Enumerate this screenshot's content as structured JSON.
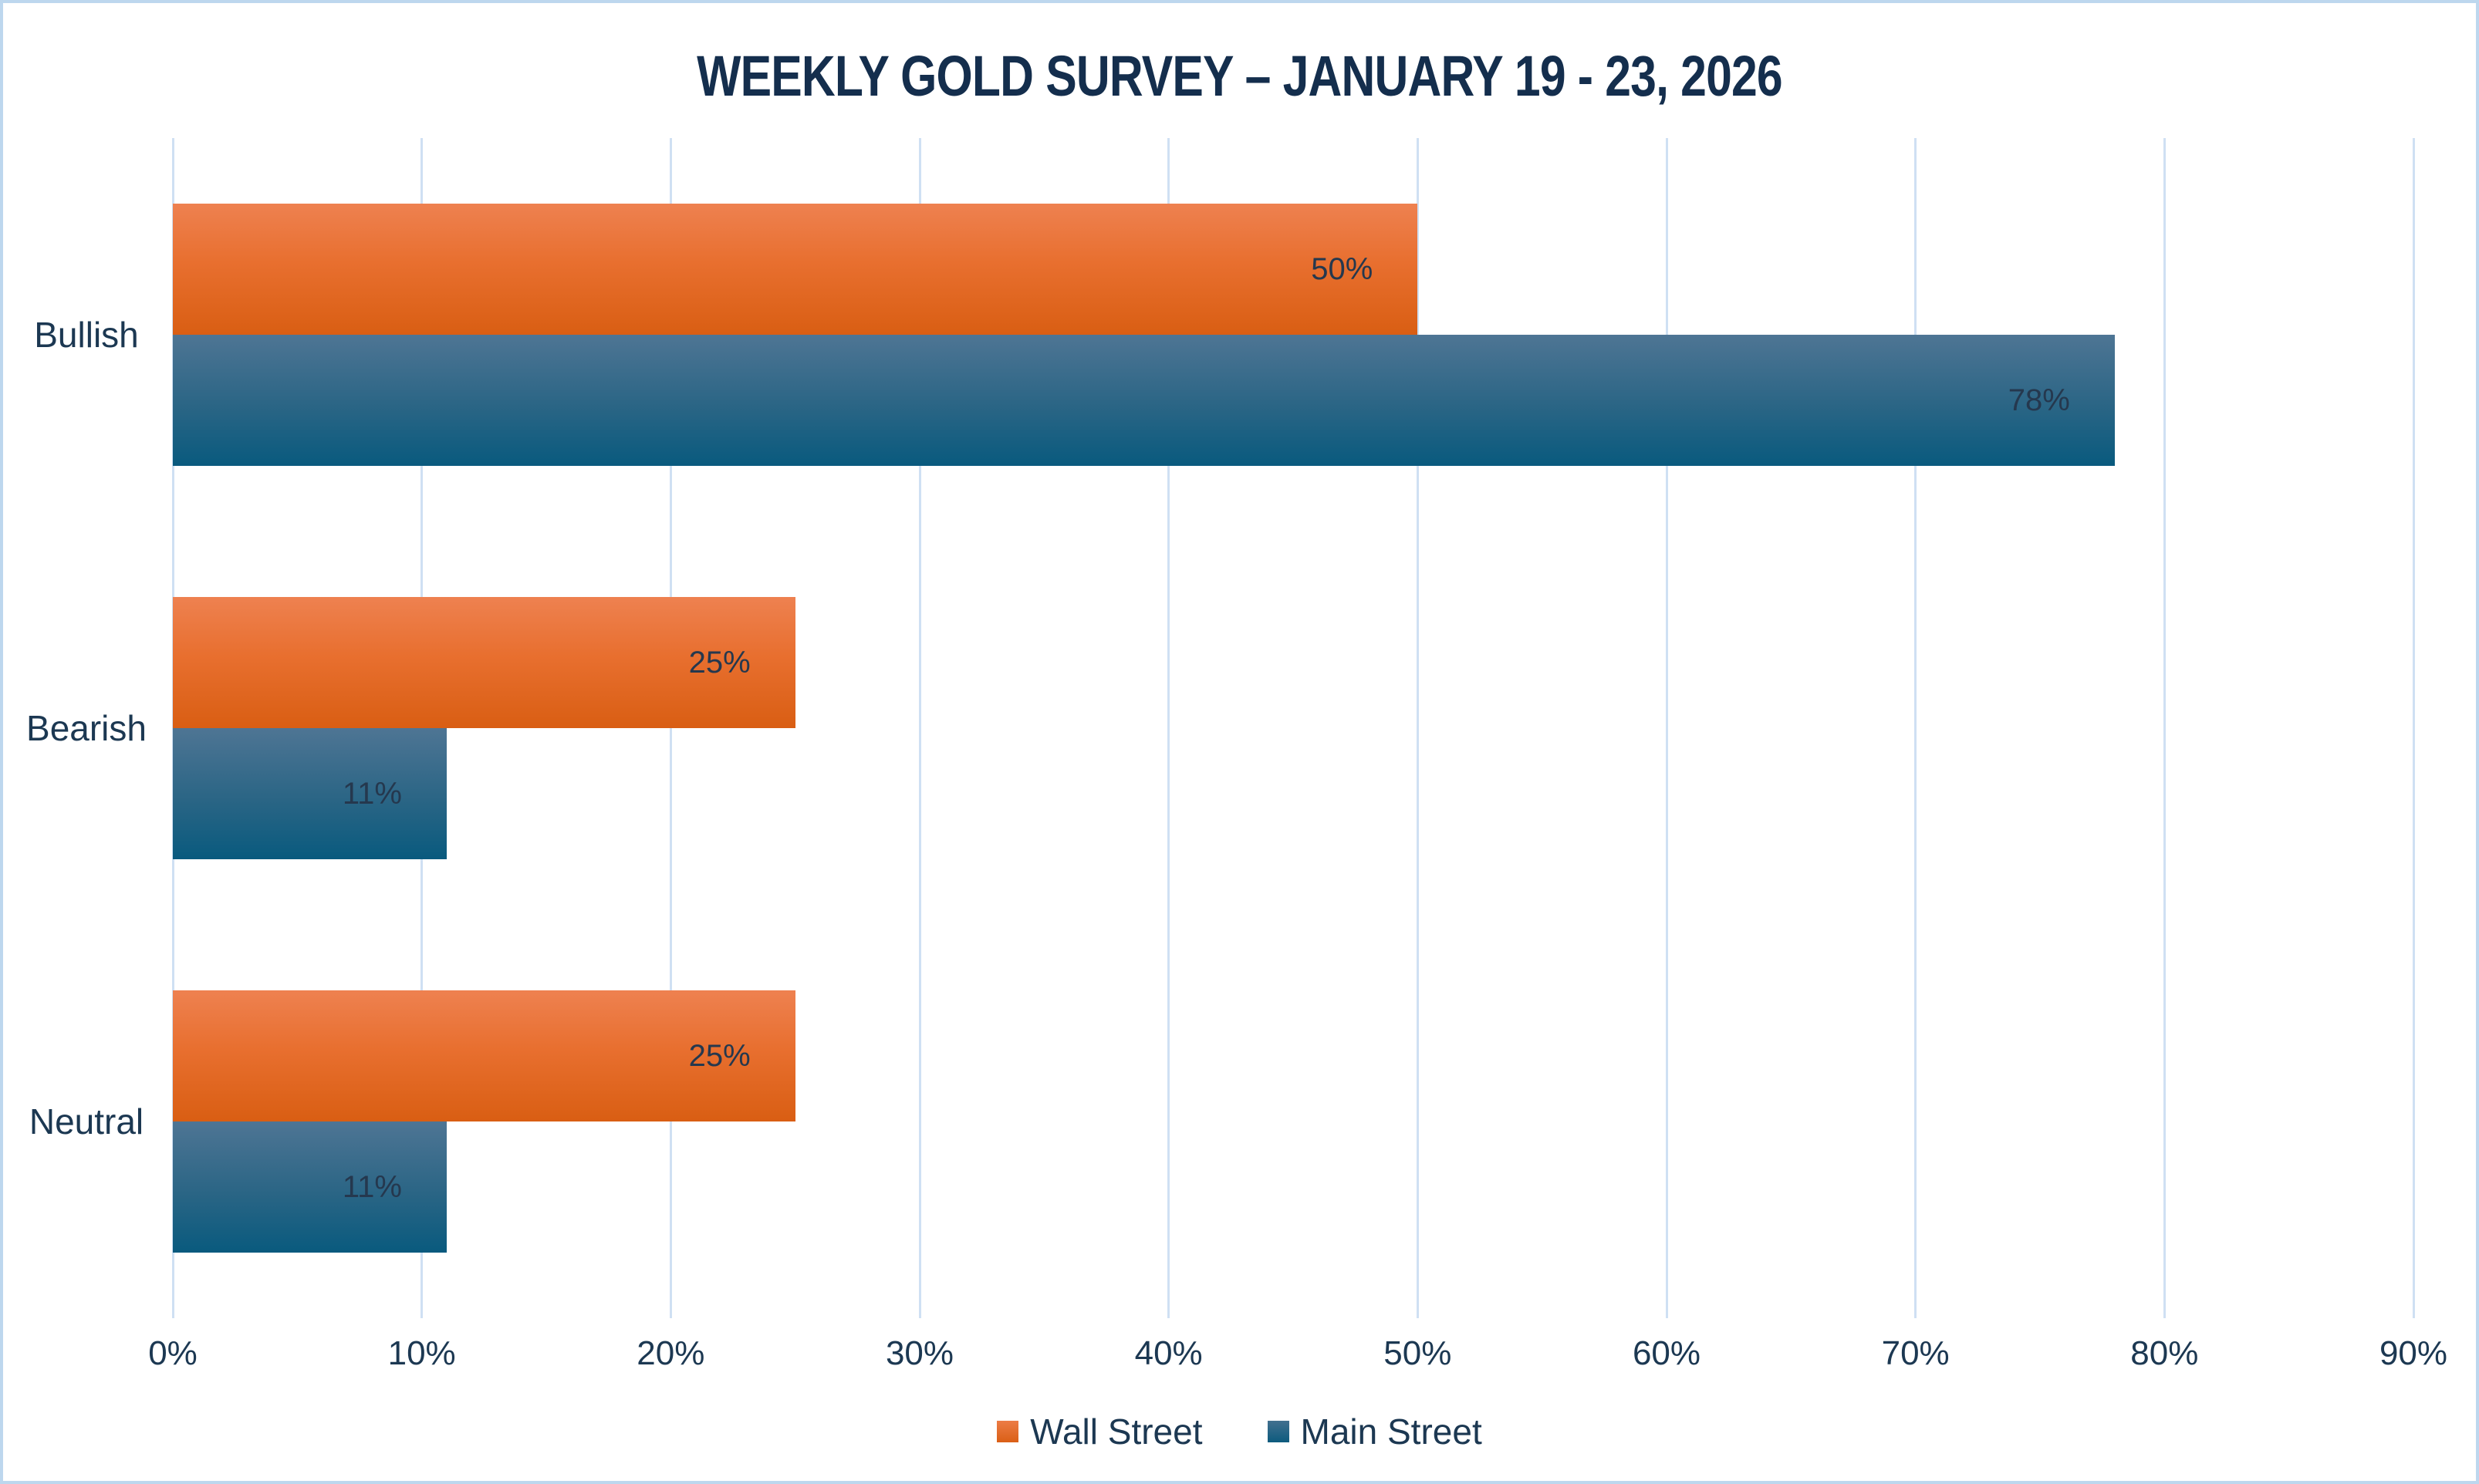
{
  "chart_data": {
    "type": "bar",
    "orientation": "horizontal",
    "title": "WEEKLY GOLD SURVEY – JANUARY 19 - 23, 2026",
    "categories": [
      "Bullish",
      "Bearish",
      "Neutral"
    ],
    "series": [
      {
        "name": "Wall Street",
        "values": [
          50,
          25,
          25
        ],
        "labels": [
          "50%",
          "25%",
          "25%"
        ]
      },
      {
        "name": "Main Street",
        "values": [
          78,
          11,
          11
        ],
        "labels": [
          "78%",
          "11%",
          "11%"
        ]
      }
    ],
    "xlabel": "",
    "ylabel": "",
    "xlim": [
      0,
      90
    ],
    "x_ticks": [
      "0%",
      "10%",
      "20%",
      "30%",
      "40%",
      "50%",
      "60%",
      "70%",
      "80%",
      "90%"
    ],
    "grid": "vertical-only",
    "legend_position": "bottom-center",
    "data_labels": "inside-end"
  },
  "colors": {
    "background": "#ffffff",
    "frame_border": "#bdd7ee",
    "gridline": "#cfe0f3",
    "text": "#1c3852",
    "title_text": "#142e4d",
    "wall_street_top": "#ee8150",
    "wall_street_bottom": "#d95e13",
    "main_street_top": "#4e7594",
    "main_street_bottom": "#095a7e"
  }
}
